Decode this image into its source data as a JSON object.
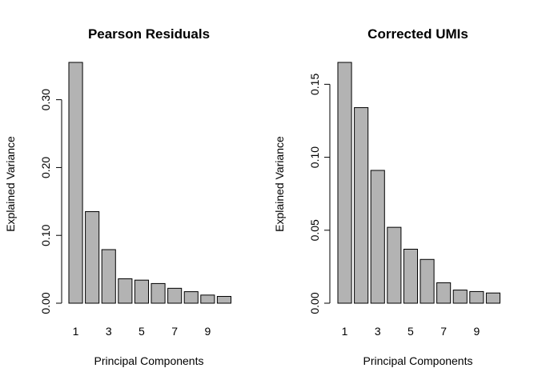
{
  "chart_data": [
    {
      "type": "bar",
      "title": "Pearson Residuals",
      "xlabel": "Principal Components",
      "ylabel": "Explained Variance",
      "categories": [
        "1",
        "2",
        "3",
        "4",
        "5",
        "6",
        "7",
        "8",
        "9",
        "10"
      ],
      "x_tick_labels": [
        "1",
        "3",
        "5",
        "7",
        "9"
      ],
      "values": [
        0.355,
        0.135,
        0.079,
        0.036,
        0.034,
        0.029,
        0.022,
        0.017,
        0.012,
        0.01
      ],
      "y_ticks": [
        0.0,
        0.1,
        0.2,
        0.3
      ],
      "y_tick_labels": [
        "0.00",
        "0.10",
        "0.20",
        "0.30"
      ],
      "ylim": [
        0,
        0.355
      ],
      "grid": false,
      "bar_color": "#b3b3b3"
    },
    {
      "type": "bar",
      "title": "Corrected UMIs",
      "xlabel": "Principal Components",
      "ylabel": "Explained Variance",
      "categories": [
        "1",
        "2",
        "3",
        "4",
        "5",
        "6",
        "7",
        "8",
        "9",
        "10"
      ],
      "x_tick_labels": [
        "1",
        "3",
        "5",
        "7",
        "9"
      ],
      "values": [
        0.165,
        0.134,
        0.091,
        0.052,
        0.037,
        0.03,
        0.014,
        0.009,
        0.008,
        0.007
      ],
      "y_ticks": [
        0.0,
        0.05,
        0.1,
        0.15
      ],
      "y_tick_labels": [
        "0.00",
        "0.05",
        "0.10",
        "0.15"
      ],
      "ylim": [
        0,
        0.165
      ],
      "grid": false,
      "bar_color": "#b3b3b3"
    }
  ]
}
